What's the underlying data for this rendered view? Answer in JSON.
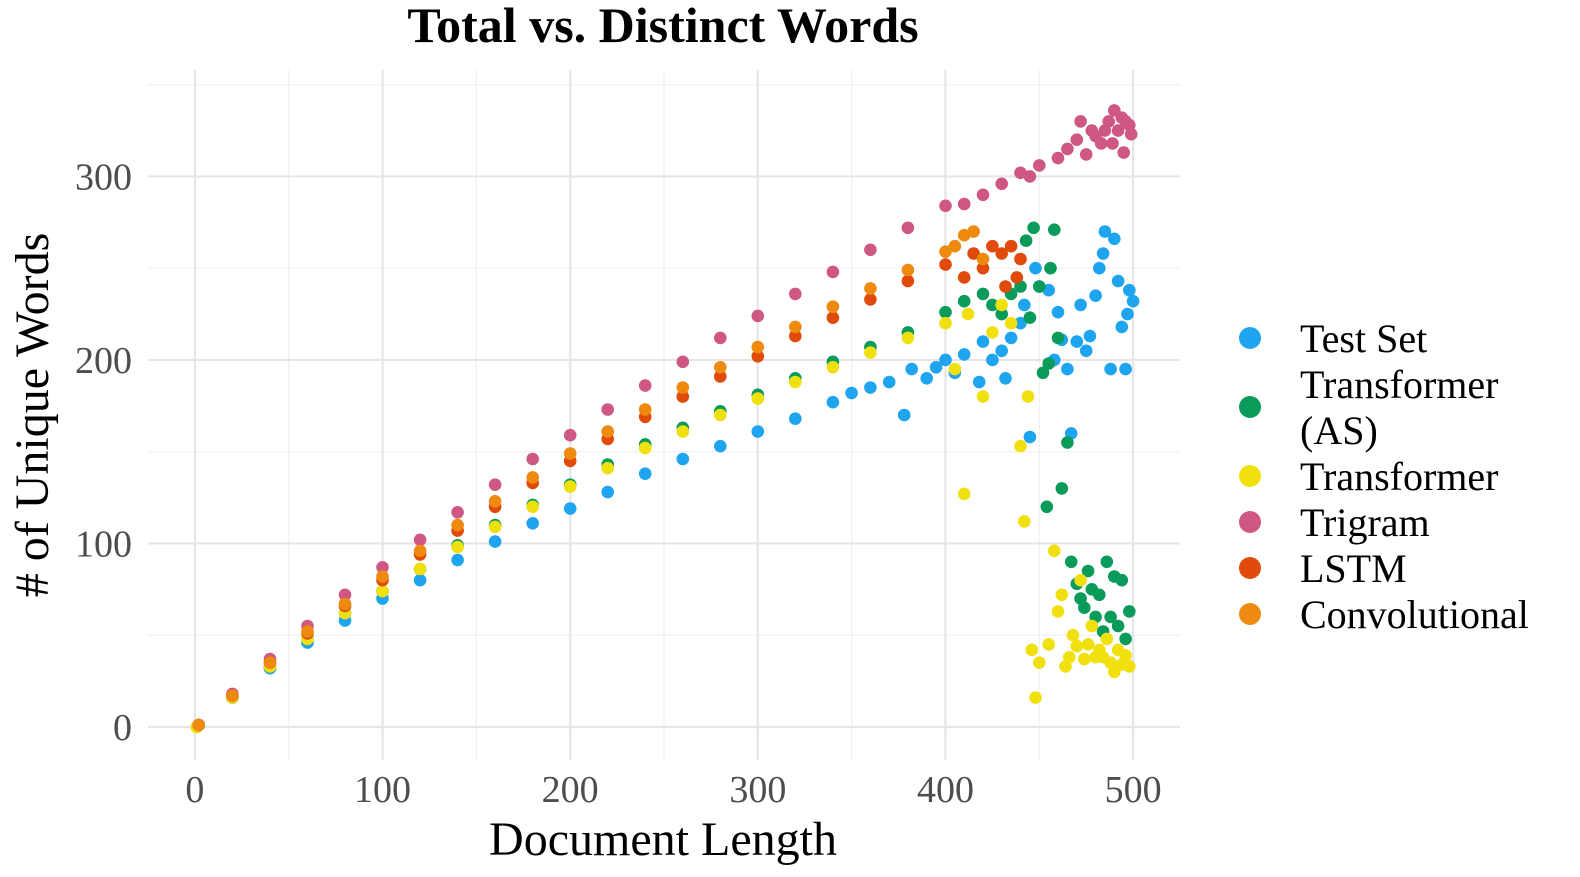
{
  "chart_data": {
    "type": "scatter",
    "title": "Total vs. Distinct Words",
    "xlabel": "Document Length",
    "ylabel": "# of Unique Words",
    "xlim": [
      -25,
      525
    ],
    "ylim": [
      -18,
      358
    ],
    "x_ticks": [
      0,
      100,
      200,
      300,
      400,
      500
    ],
    "y_ticks": [
      0,
      100,
      200,
      300
    ],
    "grid": true,
    "legend_position": "right",
    "series": [
      {
        "name": "Test Set",
        "color": "#1fa4f0",
        "points": [
          [
            2,
            1
          ],
          [
            20,
            16
          ],
          [
            40,
            32
          ],
          [
            60,
            46
          ],
          [
            80,
            58
          ],
          [
            100,
            70
          ],
          [
            120,
            80
          ],
          [
            140,
            91
          ],
          [
            160,
            101
          ],
          [
            180,
            111
          ],
          [
            200,
            119
          ],
          [
            220,
            128
          ],
          [
            240,
            138
          ],
          [
            260,
            146
          ],
          [
            280,
            153
          ],
          [
            300,
            161
          ],
          [
            320,
            168
          ],
          [
            340,
            177
          ],
          [
            350,
            182
          ],
          [
            360,
            185
          ],
          [
            370,
            188
          ],
          [
            378,
            170
          ],
          [
            382,
            195
          ],
          [
            390,
            190
          ],
          [
            395,
            196
          ],
          [
            400,
            200
          ],
          [
            405,
            193
          ],
          [
            410,
            203
          ],
          [
            418,
            188
          ],
          [
            420,
            210
          ],
          [
            425,
            200
          ],
          [
            430,
            205
          ],
          [
            432,
            190
          ],
          [
            435,
            212
          ],
          [
            440,
            220
          ],
          [
            442,
            230
          ],
          [
            445,
            158
          ],
          [
            448,
            250
          ],
          [
            450,
            240
          ],
          [
            455,
            238
          ],
          [
            458,
            200
          ],
          [
            460,
            226
          ],
          [
            462,
            211
          ],
          [
            465,
            195
          ],
          [
            467,
            160
          ],
          [
            470,
            210
          ],
          [
            472,
            230
          ],
          [
            475,
            205
          ],
          [
            477,
            213
          ],
          [
            480,
            235
          ],
          [
            482,
            250
          ],
          [
            484,
            258
          ],
          [
            485,
            270
          ],
          [
            488,
            195
          ],
          [
            490,
            266
          ],
          [
            492,
            243
          ],
          [
            494,
            218
          ],
          [
            496,
            195
          ],
          [
            497,
            225
          ],
          [
            498,
            238
          ],
          [
            500,
            232
          ]
        ]
      },
      {
        "name": "Transformer\n(AS)",
        "color": "#0a9b5a",
        "points": [
          [
            2,
            1
          ],
          [
            20,
            16
          ],
          [
            40,
            33
          ],
          [
            60,
            48
          ],
          [
            80,
            62
          ],
          [
            100,
            74
          ],
          [
            120,
            86
          ],
          [
            140,
            99
          ],
          [
            160,
            110
          ],
          [
            180,
            121
          ],
          [
            200,
            132
          ],
          [
            220,
            143
          ],
          [
            240,
            154
          ],
          [
            260,
            163
          ],
          [
            280,
            172
          ],
          [
            300,
            181
          ],
          [
            320,
            190
          ],
          [
            340,
            199
          ],
          [
            360,
            207
          ],
          [
            380,
            215
          ],
          [
            400,
            226
          ],
          [
            410,
            232
          ],
          [
            420,
            236
          ],
          [
            425,
            230
          ],
          [
            430,
            225
          ],
          [
            435,
            236
          ],
          [
            440,
            240
          ],
          [
            443,
            265
          ],
          [
            445,
            223
          ],
          [
            447,
            272
          ],
          [
            450,
            240
          ],
          [
            452,
            193
          ],
          [
            454,
            120
          ],
          [
            455,
            198
          ],
          [
            456,
            250
          ],
          [
            458,
            271
          ],
          [
            460,
            212
          ],
          [
            462,
            130
          ],
          [
            465,
            155
          ],
          [
            467,
            90
          ],
          [
            470,
            78
          ],
          [
            472,
            70
          ],
          [
            474,
            65
          ],
          [
            476,
            85
          ],
          [
            478,
            75
          ],
          [
            480,
            60
          ],
          [
            482,
            72
          ],
          [
            484,
            52
          ],
          [
            486,
            90
          ],
          [
            488,
            60
          ],
          [
            490,
            82
          ],
          [
            492,
            55
          ],
          [
            494,
            80
          ],
          [
            496,
            48
          ],
          [
            498,
            63
          ]
        ]
      },
      {
        "name": "Transformer",
        "color": "#f0e010",
        "points": [
          [
            1,
            0
          ],
          [
            20,
            16
          ],
          [
            40,
            33
          ],
          [
            60,
            48
          ],
          [
            80,
            62
          ],
          [
            100,
            74
          ],
          [
            120,
            86
          ],
          [
            140,
            98
          ],
          [
            160,
            109
          ],
          [
            180,
            120
          ],
          [
            200,
            131
          ],
          [
            220,
            141
          ],
          [
            240,
            152
          ],
          [
            260,
            161
          ],
          [
            280,
            170
          ],
          [
            300,
            179
          ],
          [
            320,
            188
          ],
          [
            340,
            196
          ],
          [
            360,
            204
          ],
          [
            380,
            212
          ],
          [
            400,
            220
          ],
          [
            405,
            195
          ],
          [
            410,
            127
          ],
          [
            412,
            225
          ],
          [
            420,
            180
          ],
          [
            425,
            215
          ],
          [
            430,
            230
          ],
          [
            435,
            220
          ],
          [
            440,
            153
          ],
          [
            442,
            112
          ],
          [
            444,
            180
          ],
          [
            446,
            42
          ],
          [
            448,
            16
          ],
          [
            450,
            35
          ],
          [
            455,
            45
          ],
          [
            458,
            96
          ],
          [
            460,
            63
          ],
          [
            462,
            72
          ],
          [
            464,
            33
          ],
          [
            466,
            38
          ],
          [
            468,
            50
          ],
          [
            470,
            44
          ],
          [
            472,
            80
          ],
          [
            474,
            37
          ],
          [
            476,
            45
          ],
          [
            478,
            55
          ],
          [
            480,
            38
          ],
          [
            482,
            42
          ],
          [
            484,
            38
          ],
          [
            486,
            48
          ],
          [
            488,
            35
          ],
          [
            490,
            30
          ],
          [
            492,
            42
          ],
          [
            494,
            34
          ],
          [
            496,
            39
          ],
          [
            498,
            33
          ]
        ]
      },
      {
        "name": "Trigram",
        "color": "#cf5783",
        "points": [
          [
            2,
            1
          ],
          [
            20,
            18
          ],
          [
            40,
            37
          ],
          [
            60,
            55
          ],
          [
            80,
            72
          ],
          [
            100,
            87
          ],
          [
            120,
            102
          ],
          [
            140,
            117
          ],
          [
            160,
            132
          ],
          [
            180,
            146
          ],
          [
            200,
            159
          ],
          [
            220,
            173
          ],
          [
            240,
            186
          ],
          [
            260,
            199
          ],
          [
            280,
            212
          ],
          [
            300,
            224
          ],
          [
            320,
            236
          ],
          [
            340,
            248
          ],
          [
            360,
            260
          ],
          [
            380,
            272
          ],
          [
            400,
            284
          ],
          [
            410,
            285
          ],
          [
            420,
            290
          ],
          [
            430,
            296
          ],
          [
            440,
            302
          ],
          [
            445,
            300
          ],
          [
            450,
            306
          ],
          [
            460,
            310
          ],
          [
            465,
            315
          ],
          [
            470,
            320
          ],
          [
            472,
            330
          ],
          [
            475,
            312
          ],
          [
            478,
            325
          ],
          [
            480,
            322
          ],
          [
            483,
            318
          ],
          [
            485,
            325
          ],
          [
            487,
            330
          ],
          [
            489,
            318
          ],
          [
            490,
            336
          ],
          [
            492,
            325
          ],
          [
            494,
            332
          ],
          [
            495,
            313
          ],
          [
            496,
            330
          ],
          [
            498,
            328
          ],
          [
            499,
            323
          ]
        ]
      },
      {
        "name": "LSTM",
        "color": "#e04a0a",
        "points": [
          [
            2,
            1
          ],
          [
            20,
            17
          ],
          [
            40,
            35
          ],
          [
            60,
            51
          ],
          [
            80,
            66
          ],
          [
            100,
            80
          ],
          [
            120,
            94
          ],
          [
            140,
            107
          ],
          [
            160,
            120
          ],
          [
            180,
            133
          ],
          [
            200,
            145
          ],
          [
            220,
            157
          ],
          [
            240,
            169
          ],
          [
            260,
            180
          ],
          [
            280,
            191
          ],
          [
            300,
            202
          ],
          [
            320,
            213
          ],
          [
            340,
            223
          ],
          [
            360,
            233
          ],
          [
            380,
            243
          ],
          [
            400,
            252
          ],
          [
            410,
            245
          ],
          [
            415,
            258
          ],
          [
            420,
            250
          ],
          [
            425,
            262
          ],
          [
            430,
            258
          ],
          [
            432,
            240
          ],
          [
            435,
            262
          ],
          [
            438,
            245
          ],
          [
            440,
            255
          ]
        ]
      },
      {
        "name": "Convolutional",
        "color": "#ee8a10",
        "points": [
          [
            2,
            1
          ],
          [
            20,
            17
          ],
          [
            40,
            35
          ],
          [
            60,
            52
          ],
          [
            80,
            67
          ],
          [
            100,
            82
          ],
          [
            120,
            96
          ],
          [
            140,
            110
          ],
          [
            160,
            123
          ],
          [
            180,
            136
          ],
          [
            200,
            149
          ],
          [
            220,
            161
          ],
          [
            240,
            173
          ],
          [
            260,
            185
          ],
          [
            280,
            196
          ],
          [
            300,
            207
          ],
          [
            320,
            218
          ],
          [
            340,
            229
          ],
          [
            360,
            239
          ],
          [
            380,
            249
          ],
          [
            400,
            259
          ],
          [
            405,
            262
          ],
          [
            410,
            268
          ],
          [
            415,
            270
          ],
          [
            420,
            255
          ]
        ]
      }
    ]
  }
}
